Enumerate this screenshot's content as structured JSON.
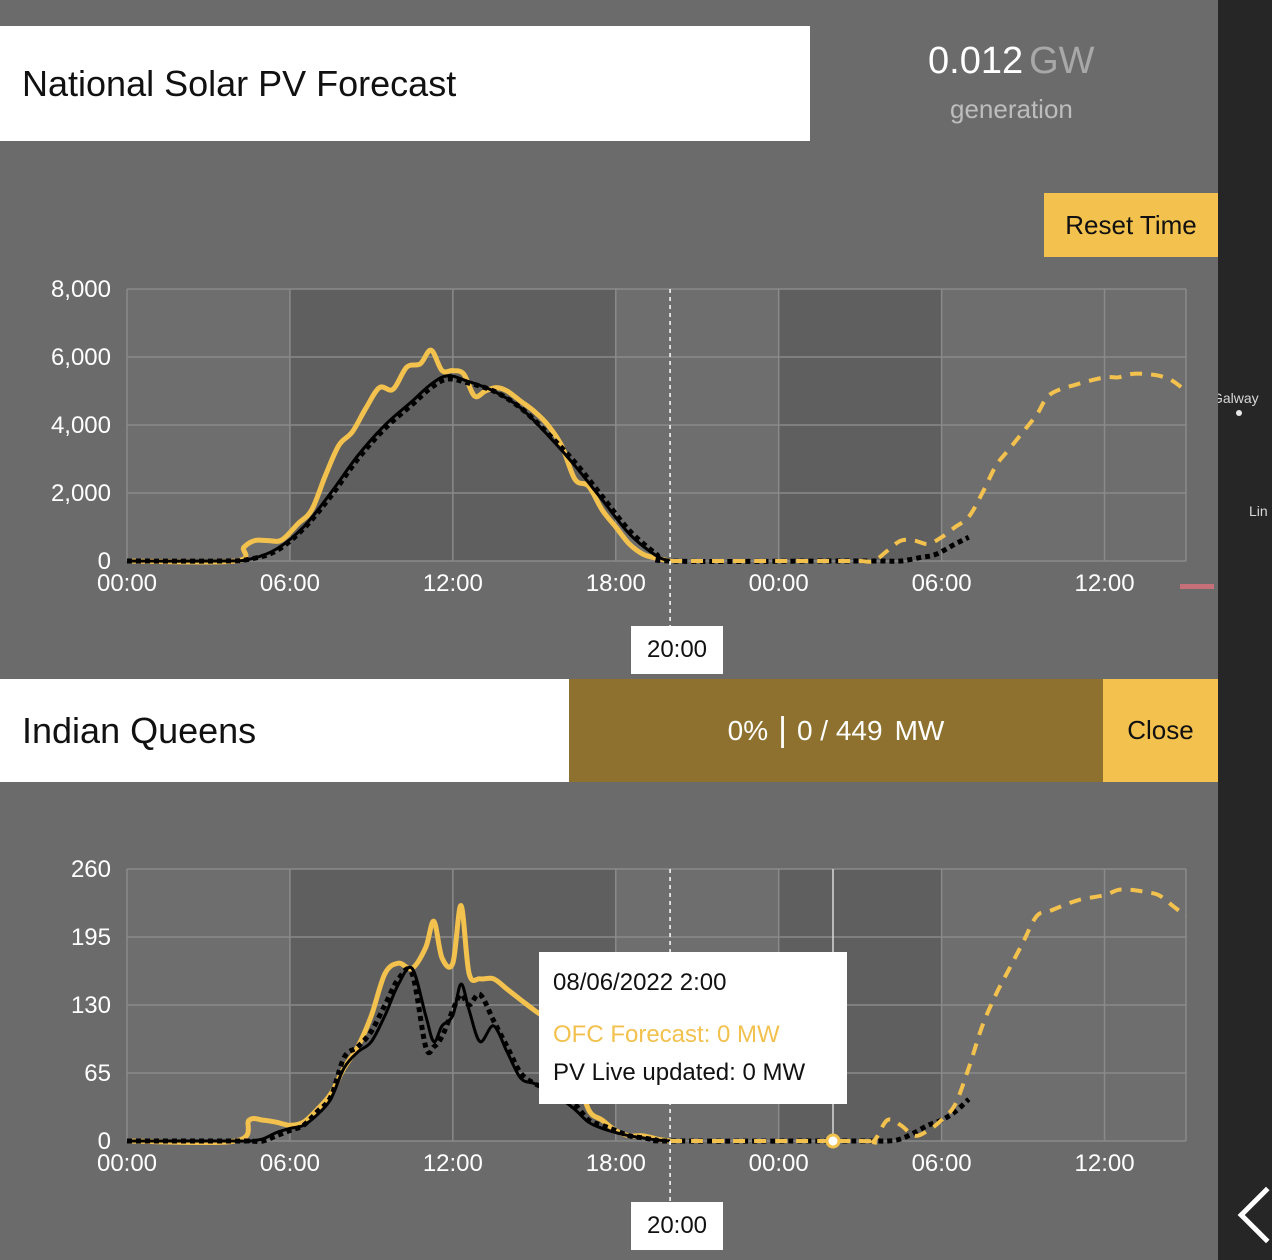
{
  "national": {
    "title": "National Solar PV Forecast",
    "generation_value": "0.012",
    "generation_unit": "GW",
    "generation_label": "generation",
    "reset_button": "Reset Time",
    "current_time": "20:00"
  },
  "site": {
    "title": "Indian Queens",
    "percent": "0%",
    "separator": "|",
    "capacity": "0 / 449",
    "unit": "MW",
    "close_button": "Close",
    "current_time": "20:00"
  },
  "tooltip": {
    "date": "08/06/2022 2:00",
    "ofc": "OFC Forecast: 0 MW",
    "pv": "PV Live updated: 0 MW"
  },
  "map": {
    "places": [
      "Galway",
      "Lin"
    ]
  },
  "colors": {
    "forecast": "#f2c14e",
    "pvlive": "#000000",
    "panel": "#6b6b6b",
    "night_band": "#5f5f5f",
    "site_bar": "#8e712e"
  },
  "chart_data": [
    {
      "type": "line",
      "x_ticks": [
        "00:00",
        "06:00",
        "12:00",
        "18:00",
        "00:00",
        "06:00",
        "12:00"
      ],
      "x_range_hours": [
        0,
        39
      ],
      "now_hour": 20,
      "ylim": [
        0,
        8000
      ],
      "y_ticks": [
        "0",
        "2,000",
        "4,000",
        "6,000",
        "8,000"
      ],
      "grid": true,
      "series": [
        {
          "style": "yellow-solid",
          "x": [
            0,
            4,
            4.3,
            4.7,
            5.2,
            5.7,
            6.3,
            6.8,
            7.3,
            7.8,
            8.3,
            8.8,
            9.3,
            9.8,
            10.3,
            10.8,
            11.2,
            11.6,
            12,
            12.4,
            12.8,
            13.2,
            13.6,
            14,
            14.5,
            15,
            15.5,
            16,
            16.5,
            17,
            17.5,
            18,
            18.5,
            19,
            19.5,
            20
          ],
          "y": [
            0,
            0,
            400,
            600,
            600,
            620,
            1100,
            1500,
            2500,
            3400,
            3800,
            4500,
            5100,
            5050,
            5700,
            5800,
            6200,
            5600,
            5600,
            5500,
            4850,
            5000,
            5100,
            5000,
            4700,
            4400,
            4000,
            3400,
            2400,
            2200,
            1500,
            1000,
            500,
            200,
            80,
            0
          ]
        },
        {
          "style": "black-solid",
          "x": [
            0,
            3.5,
            4.5,
            5.5,
            6.5,
            7.5,
            8.5,
            9.5,
            10.5,
            11.2,
            11.8,
            12.5,
            13.5,
            14.5,
            15.5,
            16.5,
            17.5,
            18.5,
            19.5,
            20
          ],
          "y": [
            0,
            0,
            50,
            350,
            1000,
            2000,
            3100,
            4000,
            4700,
            5200,
            5450,
            5300,
            5000,
            4500,
            3700,
            2800,
            1800,
            800,
            150,
            0
          ]
        },
        {
          "style": "black-dotted",
          "x": [
            0,
            3.5,
            4.5,
            5.5,
            6.5,
            7.5,
            8.5,
            9.5,
            10.5,
            11.2,
            11.8,
            12.5,
            13.5,
            14.5,
            15.5,
            16.5,
            17.5,
            18.5,
            19.5,
            20,
            26,
            27,
            27.8,
            28.5,
            29.2,
            29.8,
            30.5,
            31
          ],
          "y": [
            0,
            0,
            50,
            300,
            950,
            1900,
            3000,
            3900,
            4600,
            5100,
            5350,
            5250,
            5000,
            4500,
            3750,
            2900,
            1900,
            900,
            200,
            0,
            0,
            0,
            0,
            0,
            100,
            200,
            500,
            700
          ]
        },
        {
          "style": "yellow-dashed",
          "x": [
            20,
            25,
            26,
            26.5,
            27,
            27.5,
            28,
            28.5,
            29,
            29.5,
            30,
            30.5,
            31,
            31.5,
            32,
            32.5,
            33,
            33.5,
            34,
            35,
            36,
            36.5,
            37,
            37.5,
            38,
            38.5,
            39
          ],
          "y": [
            0,
            0,
            0,
            0,
            0,
            0,
            300,
            600,
            600,
            500,
            700,
            1000,
            1300,
            2000,
            2800,
            3300,
            3800,
            4300,
            4900,
            5200,
            5400,
            5400,
            5500,
            5500,
            5450,
            5300,
            5000
          ]
        }
      ]
    },
    {
      "type": "line",
      "x_ticks": [
        "00:00",
        "06:00",
        "12:00",
        "18:00",
        "00:00",
        "06:00",
        "12:00"
      ],
      "x_range_hours": [
        0,
        39
      ],
      "now_hour": 20,
      "hover_hour": 26,
      "ylim": [
        0,
        260
      ],
      "y_ticks": [
        "0",
        "65",
        "130",
        "195",
        "260"
      ],
      "grid": true,
      "series": [
        {
          "style": "yellow-solid",
          "x": [
            0,
            4,
            4.5,
            5,
            5.5,
            6,
            6.5,
            7,
            7.5,
            8,
            8.5,
            9,
            9.5,
            10,
            10.5,
            11,
            11.3,
            11.6,
            12,
            12.3,
            12.6,
            13,
            13.5,
            14,
            14.5,
            15,
            15.5,
            16,
            16.5,
            17,
            17.5,
            18,
            18.5,
            19,
            19.5,
            20
          ],
          "y": [
            0,
            0,
            20,
            20,
            18,
            15,
            18,
            30,
            45,
            70,
            90,
            120,
            160,
            170,
            165,
            185,
            210,
            175,
            170,
            225,
            160,
            155,
            155,
            145,
            135,
            125,
            115,
            95,
            70,
            30,
            20,
            10,
            5,
            5,
            2,
            0
          ]
        },
        {
          "style": "black-solid",
          "x": [
            0,
            4,
            4.5,
            5,
            5.5,
            6,
            6.5,
            7,
            7.5,
            8,
            8.5,
            9,
            9.5,
            10,
            10.5,
            11,
            11.3,
            11.6,
            12,
            12.3,
            12.6,
            13,
            13.5,
            14,
            14.5,
            15,
            15.5,
            16,
            16.5,
            17,
            17.5,
            18,
            18.5,
            19,
            19.5,
            20
          ],
          "y": [
            0,
            0,
            0,
            2,
            8,
            12,
            15,
            25,
            40,
            70,
            85,
            95,
            120,
            150,
            165,
            120,
            95,
            110,
            120,
            150,
            125,
            95,
            110,
            85,
            60,
            55,
            48,
            40,
            30,
            18,
            12,
            8,
            5,
            3,
            1,
            0
          ]
        },
        {
          "style": "black-dotted",
          "x": [
            0,
            4,
            4.5,
            5,
            5.5,
            6,
            6.5,
            7,
            7.5,
            8,
            8.5,
            9,
            9.5,
            10,
            10.5,
            11,
            11.3,
            11.6,
            12,
            12.3,
            12.6,
            13,
            13.5,
            14,
            14.5,
            15,
            15.5,
            16,
            16.5,
            17,
            17.5,
            18,
            18.5,
            19,
            19.5,
            20,
            27,
            28,
            28.5,
            29,
            29.5,
            30,
            30.5,
            31
          ],
          "y": [
            0,
            0,
            0,
            0,
            5,
            10,
            15,
            28,
            42,
            80,
            90,
            105,
            130,
            155,
            160,
            90,
            90,
            100,
            125,
            140,
            130,
            140,
            115,
            90,
            65,
            55,
            50,
            45,
            35,
            20,
            15,
            10,
            5,
            3,
            1,
            0,
            0,
            0,
            2,
            8,
            15,
            20,
            28,
            40
          ]
        },
        {
          "style": "yellow-dashed",
          "x": [
            20,
            27,
            27.5,
            28,
            28.5,
            29,
            29.5,
            30,
            30.5,
            31,
            31.5,
            32,
            32.5,
            33,
            33.5,
            34,
            35,
            36,
            36.5,
            37,
            37.5,
            38,
            38.5,
            39
          ],
          "y": [
            0,
            0,
            0,
            20,
            15,
            5,
            10,
            20,
            35,
            70,
            110,
            140,
            165,
            190,
            215,
            220,
            230,
            235,
            240,
            240,
            238,
            235,
            225,
            215
          ]
        }
      ]
    }
  ]
}
